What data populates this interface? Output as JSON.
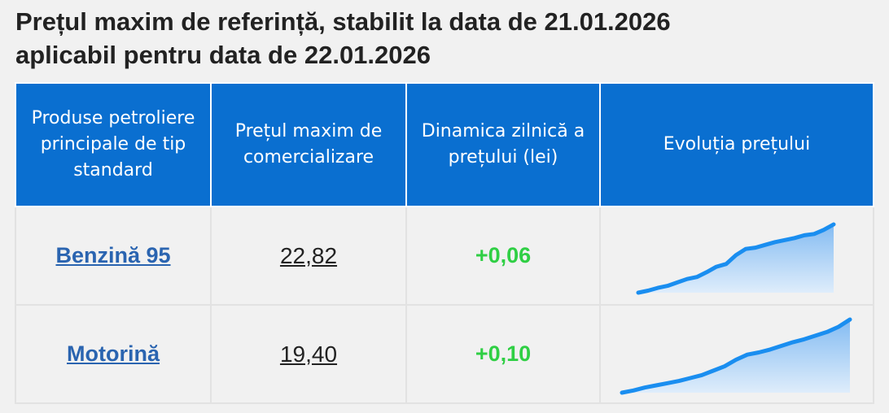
{
  "title": {
    "line1": "Prețul maxim de referință, stabilit la data de 21.01.2026",
    "line2": "aplicabil pentru data de 22.01.2026"
  },
  "table": {
    "headers": [
      {
        "line1": "Produse petroliere",
        "line2": "principale de tip",
        "line3": "standard"
      },
      {
        "line1": "Prețul maxim de",
        "line2": "comercializare"
      },
      {
        "line1": "Dinamica zilnică a",
        "line2": "prețului (lei)"
      },
      {
        "line1": "Evoluția prețului"
      }
    ],
    "rows": [
      {
        "product": "Benzină 95",
        "price": "22,82",
        "delta": "+0,06",
        "trend": [
          0.0,
          0.03,
          0.07,
          0.1,
          0.15,
          0.2,
          0.23,
          0.3,
          0.38,
          0.42,
          0.55,
          0.64,
          0.66,
          0.7,
          0.74,
          0.77,
          0.8,
          0.84,
          0.86,
          0.92,
          1.0
        ]
      },
      {
        "product": "Motorină",
        "price": "19,40",
        "delta": "+0,10",
        "trend": [
          0.0,
          0.03,
          0.07,
          0.1,
          0.13,
          0.16,
          0.2,
          0.24,
          0.3,
          0.36,
          0.45,
          0.52,
          0.55,
          0.59,
          0.64,
          0.69,
          0.73,
          0.78,
          0.83,
          0.9,
          1.0
        ]
      }
    ]
  },
  "colors": {
    "header_bg": "#0a6fd0",
    "link": "#2a64b0",
    "positive": "#2fcf44",
    "spark_line": "#1a8ef0"
  }
}
